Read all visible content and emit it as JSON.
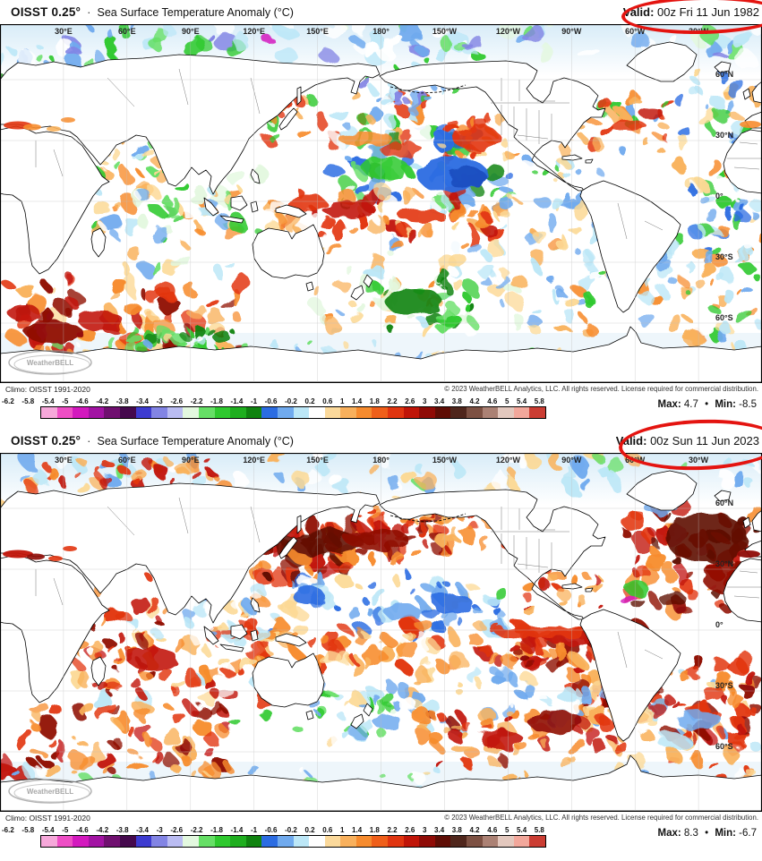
{
  "maps": [
    {
      "product": "OISST 0.25°",
      "separator": "·",
      "title": "Sea Surface Temperature Anomaly (°C)",
      "valid_label": "Valid:",
      "valid_value": "00z Fri 11 Jun 1982",
      "climo": "Climo: OISST 1991-2020",
      "copyright": "© 2023 WeatherBELL Analytics, LLC. All rights reserved. License required for commercial distribution.",
      "watermark": "WeatherBELL",
      "max_label": "Max:",
      "max_value": "4.7",
      "maxmin_sep": "•",
      "min_label": "Min:",
      "min_value": "-8.5"
    },
    {
      "product": "OISST 0.25°",
      "separator": "·",
      "title": "Sea Surface Temperature Anomaly (°C)",
      "valid_label": "Valid:",
      "valid_value": "00z Sun 11 Jun 2023",
      "climo": "Climo: OISST 1991-2020",
      "copyright": "© 2023 WeatherBELL Analytics, LLC. All rights reserved. License required for commercial distribution.",
      "watermark": "WeatherBELL",
      "max_label": "Max:",
      "max_value": "8.3",
      "maxmin_sep": "•",
      "min_label": "Min:",
      "min_value": "-6.7"
    }
  ],
  "map_frame": {
    "lon_labels": [
      "30°E",
      "60°E",
      "90°E",
      "120°E",
      "150°E",
      "180°",
      "150°W",
      "120°W",
      "90°W",
      "60°W",
      "30°W"
    ],
    "lat_labels": [
      "60°N",
      "30°N",
      "0°",
      "30°S",
      "60°S"
    ]
  },
  "colorbar": {
    "ticks": [
      "-6.2",
      "-5.8",
      "-5.4",
      "-5",
      "-4.6",
      "-4.2",
      "-3.8",
      "-3.4",
      "-3",
      "-2.6",
      "-2.2",
      "-1.8",
      "-1.4",
      "-1",
      "-0.6",
      "-0.2",
      "0.2",
      "0.6",
      "1",
      "1.4",
      "1.8",
      "2.2",
      "2.6",
      "3",
      "3.4",
      "3.8",
      "4.2",
      "4.6",
      "5",
      "5.4",
      "5.8"
    ],
    "colors": [
      "#f6a8da",
      "#ee4ec5",
      "#d319be",
      "#a213a3",
      "#701070",
      "#45094d",
      "#3d3bd0",
      "#8284e4",
      "#babcf2",
      "#e3f8df",
      "#66df66",
      "#2fc92f",
      "#1fae1f",
      "#108310",
      "#2b6ce2",
      "#70aaee",
      "#bce7f7",
      "#ffffff",
      "#fbd99b",
      "#f8b05c",
      "#f68b2e",
      "#ef5f1a",
      "#e03510",
      "#c01508",
      "#8f0b06",
      "#5e0d05",
      "#4f261c",
      "#7d5143",
      "#ab8174",
      "#e3c8be",
      "#f2a79b",
      "#cb3d33"
    ]
  },
  "annotation": {
    "color": "#e41410"
  }
}
